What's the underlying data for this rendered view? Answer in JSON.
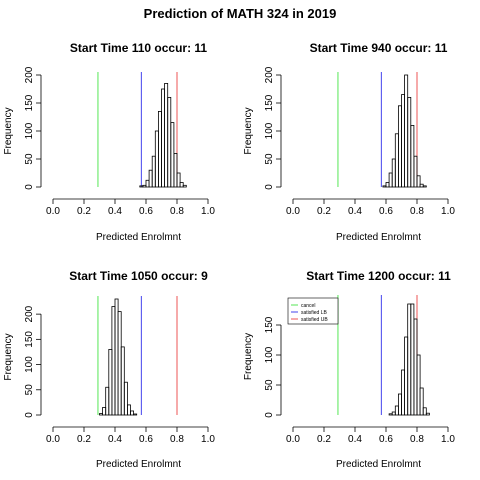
{
  "title": "Prediction of MATH 324 in 2019",
  "colors": {
    "cancel": "#55e655",
    "satisfied_lb": "#4444ee",
    "satisfied_ub": "#ee5555",
    "bars": "#000000"
  },
  "chart_data": [
    {
      "type": "bar",
      "title": "Start Time 110 occur: 11",
      "xlabel": "Predicted Enrolmnt",
      "ylabel": "Frequency",
      "xlim": [
        0,
        1
      ],
      "ylim": [
        0,
        200
      ],
      "xticks": [
        "0.0",
        "0.2",
        "0.4",
        "0.6",
        "0.8",
        "1.0"
      ],
      "yticks": [
        "0",
        "50",
        "100",
        "150",
        "200"
      ],
      "bin_width": 0.02,
      "bins_start": [
        0.56,
        0.58,
        0.6,
        0.62,
        0.64,
        0.66,
        0.68,
        0.7,
        0.72,
        0.74,
        0.76,
        0.78,
        0.8,
        0.82,
        0.84
      ],
      "values": [
        2,
        3,
        12,
        30,
        55,
        100,
        135,
        175,
        185,
        160,
        115,
        60,
        25,
        8,
        3
      ],
      "vlines": {
        "cancel": 0.29,
        "satisfied_lb": 0.57,
        "satisfied_ub": 0.8
      }
    },
    {
      "type": "bar",
      "title": "Start Time 940 occur: 11",
      "xlabel": "Predicted Enrolmnt",
      "ylabel": "Frequency",
      "xlim": [
        0,
        1
      ],
      "ylim": [
        0,
        200
      ],
      "xticks": [
        "0.0",
        "0.2",
        "0.4",
        "0.6",
        "0.8",
        "1.0"
      ],
      "yticks": [
        "0",
        "50",
        "100",
        "150",
        "200"
      ],
      "bin_width": 0.02,
      "bins_start": [
        0.58,
        0.6,
        0.62,
        0.64,
        0.66,
        0.68,
        0.7,
        0.72,
        0.74,
        0.76,
        0.78,
        0.8,
        0.82,
        0.84
      ],
      "values": [
        2,
        8,
        25,
        50,
        95,
        145,
        165,
        200,
        160,
        110,
        55,
        20,
        5,
        2
      ],
      "vlines": {
        "cancel": 0.29,
        "satisfied_lb": 0.57,
        "satisfied_ub": 0.8
      }
    },
    {
      "type": "bar",
      "title": "Start Time 1050 occur: 9",
      "xlabel": "Predicted Enrolmnt",
      "ylabel": "Frequency",
      "xlim": [
        0,
        1
      ],
      "ylim": [
        0,
        230
      ],
      "xticks": [
        "0.0",
        "0.2",
        "0.4",
        "0.6",
        "0.8",
        "1.0"
      ],
      "yticks": [
        "0",
        "50",
        "100",
        "150",
        "200"
      ],
      "bin_width": 0.02,
      "bins_start": [
        0.3,
        0.32,
        0.34,
        0.36,
        0.38,
        0.4,
        0.42,
        0.44,
        0.46,
        0.48,
        0.5,
        0.52
      ],
      "values": [
        3,
        15,
        55,
        130,
        215,
        230,
        205,
        135,
        65,
        20,
        8,
        2
      ],
      "vlines": {
        "cancel": 0.29,
        "satisfied_lb": 0.57,
        "satisfied_ub": 0.8
      }
    },
    {
      "type": "bar",
      "title": "Start Time 1200 occur: 11",
      "xlabel": "Predicted Enrolmnt",
      "ylabel": "Frequency",
      "xlim": [
        0,
        1
      ],
      "ylim": [
        0,
        195
      ],
      "xticks": [
        "0.0",
        "0.2",
        "0.4",
        "0.6",
        "0.8",
        "1.0"
      ],
      "yticks": [
        "0",
        "50",
        "100",
        "150"
      ],
      "bin_width": 0.02,
      "bins_start": [
        0.62,
        0.64,
        0.66,
        0.68,
        0.7,
        0.72,
        0.74,
        0.76,
        0.78,
        0.8,
        0.82,
        0.84,
        0.86
      ],
      "values": [
        2,
        5,
        15,
        35,
        75,
        130,
        185,
        185,
        160,
        100,
        45,
        12,
        3
      ],
      "vlines": {
        "cancel": 0.29,
        "satisfied_lb": 0.57,
        "satisfied_ub": 0.8
      },
      "legend": {
        "placement": "top-left",
        "entries": [
          {
            "label": "cancel",
            "color_key": "cancel"
          },
          {
            "label": "satisfied LB",
            "color_key": "satisfied_lb"
          },
          {
            "label": "satisfied UB",
            "color_key": "satisfied_ub"
          }
        ]
      }
    }
  ]
}
